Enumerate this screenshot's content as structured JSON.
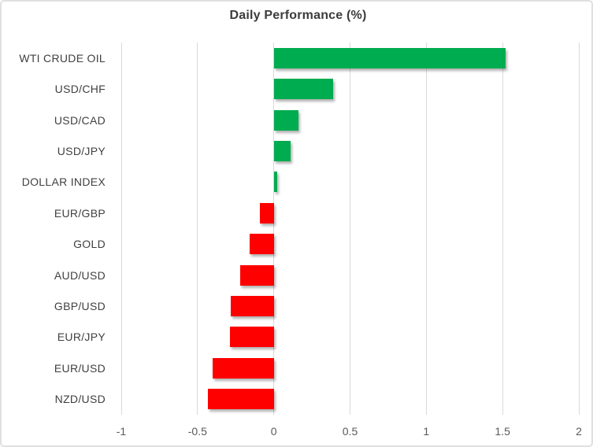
{
  "chart_data": {
    "type": "bar",
    "orientation": "horizontal",
    "title": "Daily Performance (%)",
    "categories": [
      "WTI CRUDE OIL",
      "USD/CHF",
      "USD/CAD",
      "USD/JPY",
      "DOLLAR INDEX",
      "EUR/GBP",
      "GOLD",
      "AUD/USD",
      "GBP/USD",
      "EUR/JPY",
      "EUR/USD",
      "NZD/USD"
    ],
    "values": [
      1.52,
      0.39,
      0.16,
      0.11,
      0.02,
      -0.09,
      -0.16,
      -0.22,
      -0.28,
      -0.29,
      -0.4,
      -0.43
    ],
    "xlabel": "",
    "ylabel": "",
    "xlim": [
      -1,
      2
    ],
    "xticks": [
      -1,
      -0.5,
      0,
      0.5,
      1,
      1.5,
      2
    ],
    "xtick_labels": [
      "-1",
      "-0.5",
      "0",
      "0.5",
      "1",
      "1.5",
      "2"
    ],
    "grid": true,
    "legend": false,
    "colors": {
      "positive": "#00AC50",
      "negative": "#FF0000",
      "gridline": "#D9D9D9",
      "title_text": "#3C3C3C",
      "category_text": "#404040",
      "tick_text": "#595959",
      "border": "#E0E0E0",
      "background": "#FFFFFF"
    }
  }
}
